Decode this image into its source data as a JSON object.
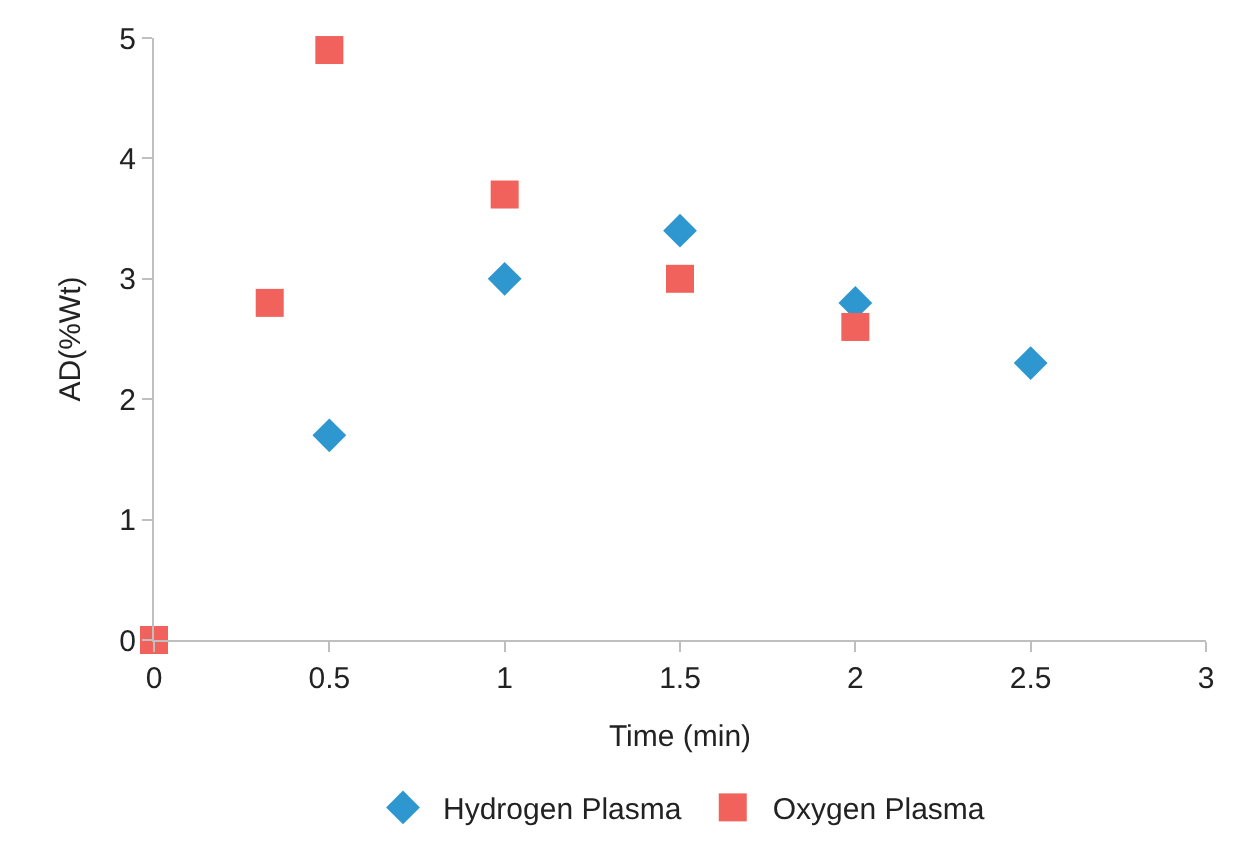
{
  "chart_data": {
    "type": "scatter",
    "xlabel": "Time (min)",
    "ylabel": "AD(%Wt)",
    "series": [
      {
        "name": "Hydrogen Plasma",
        "color": "#2e97cf",
        "marker": "diamond",
        "x": [
          0.5,
          1,
          1.5,
          2,
          2.5
        ],
        "values": [
          1.7,
          3.0,
          3.4,
          2.8,
          2.3
        ]
      },
      {
        "name": "Oxygen Plasma",
        "color": "#f0625b",
        "marker": "square",
        "x": [
          0,
          0.33,
          0.5,
          1,
          1.5,
          2
        ],
        "values": [
          0,
          2.8,
          4.9,
          3.7,
          3.0,
          2.6
        ]
      }
    ],
    "xlim": [
      0,
      3
    ],
    "xticks": [
      0,
      0.5,
      1,
      1.5,
      2,
      2.5,
      3
    ],
    "ylim": [
      0,
      5
    ],
    "yticks": [
      0,
      1,
      2,
      3,
      4,
      5
    ],
    "legend": "bottom"
  }
}
